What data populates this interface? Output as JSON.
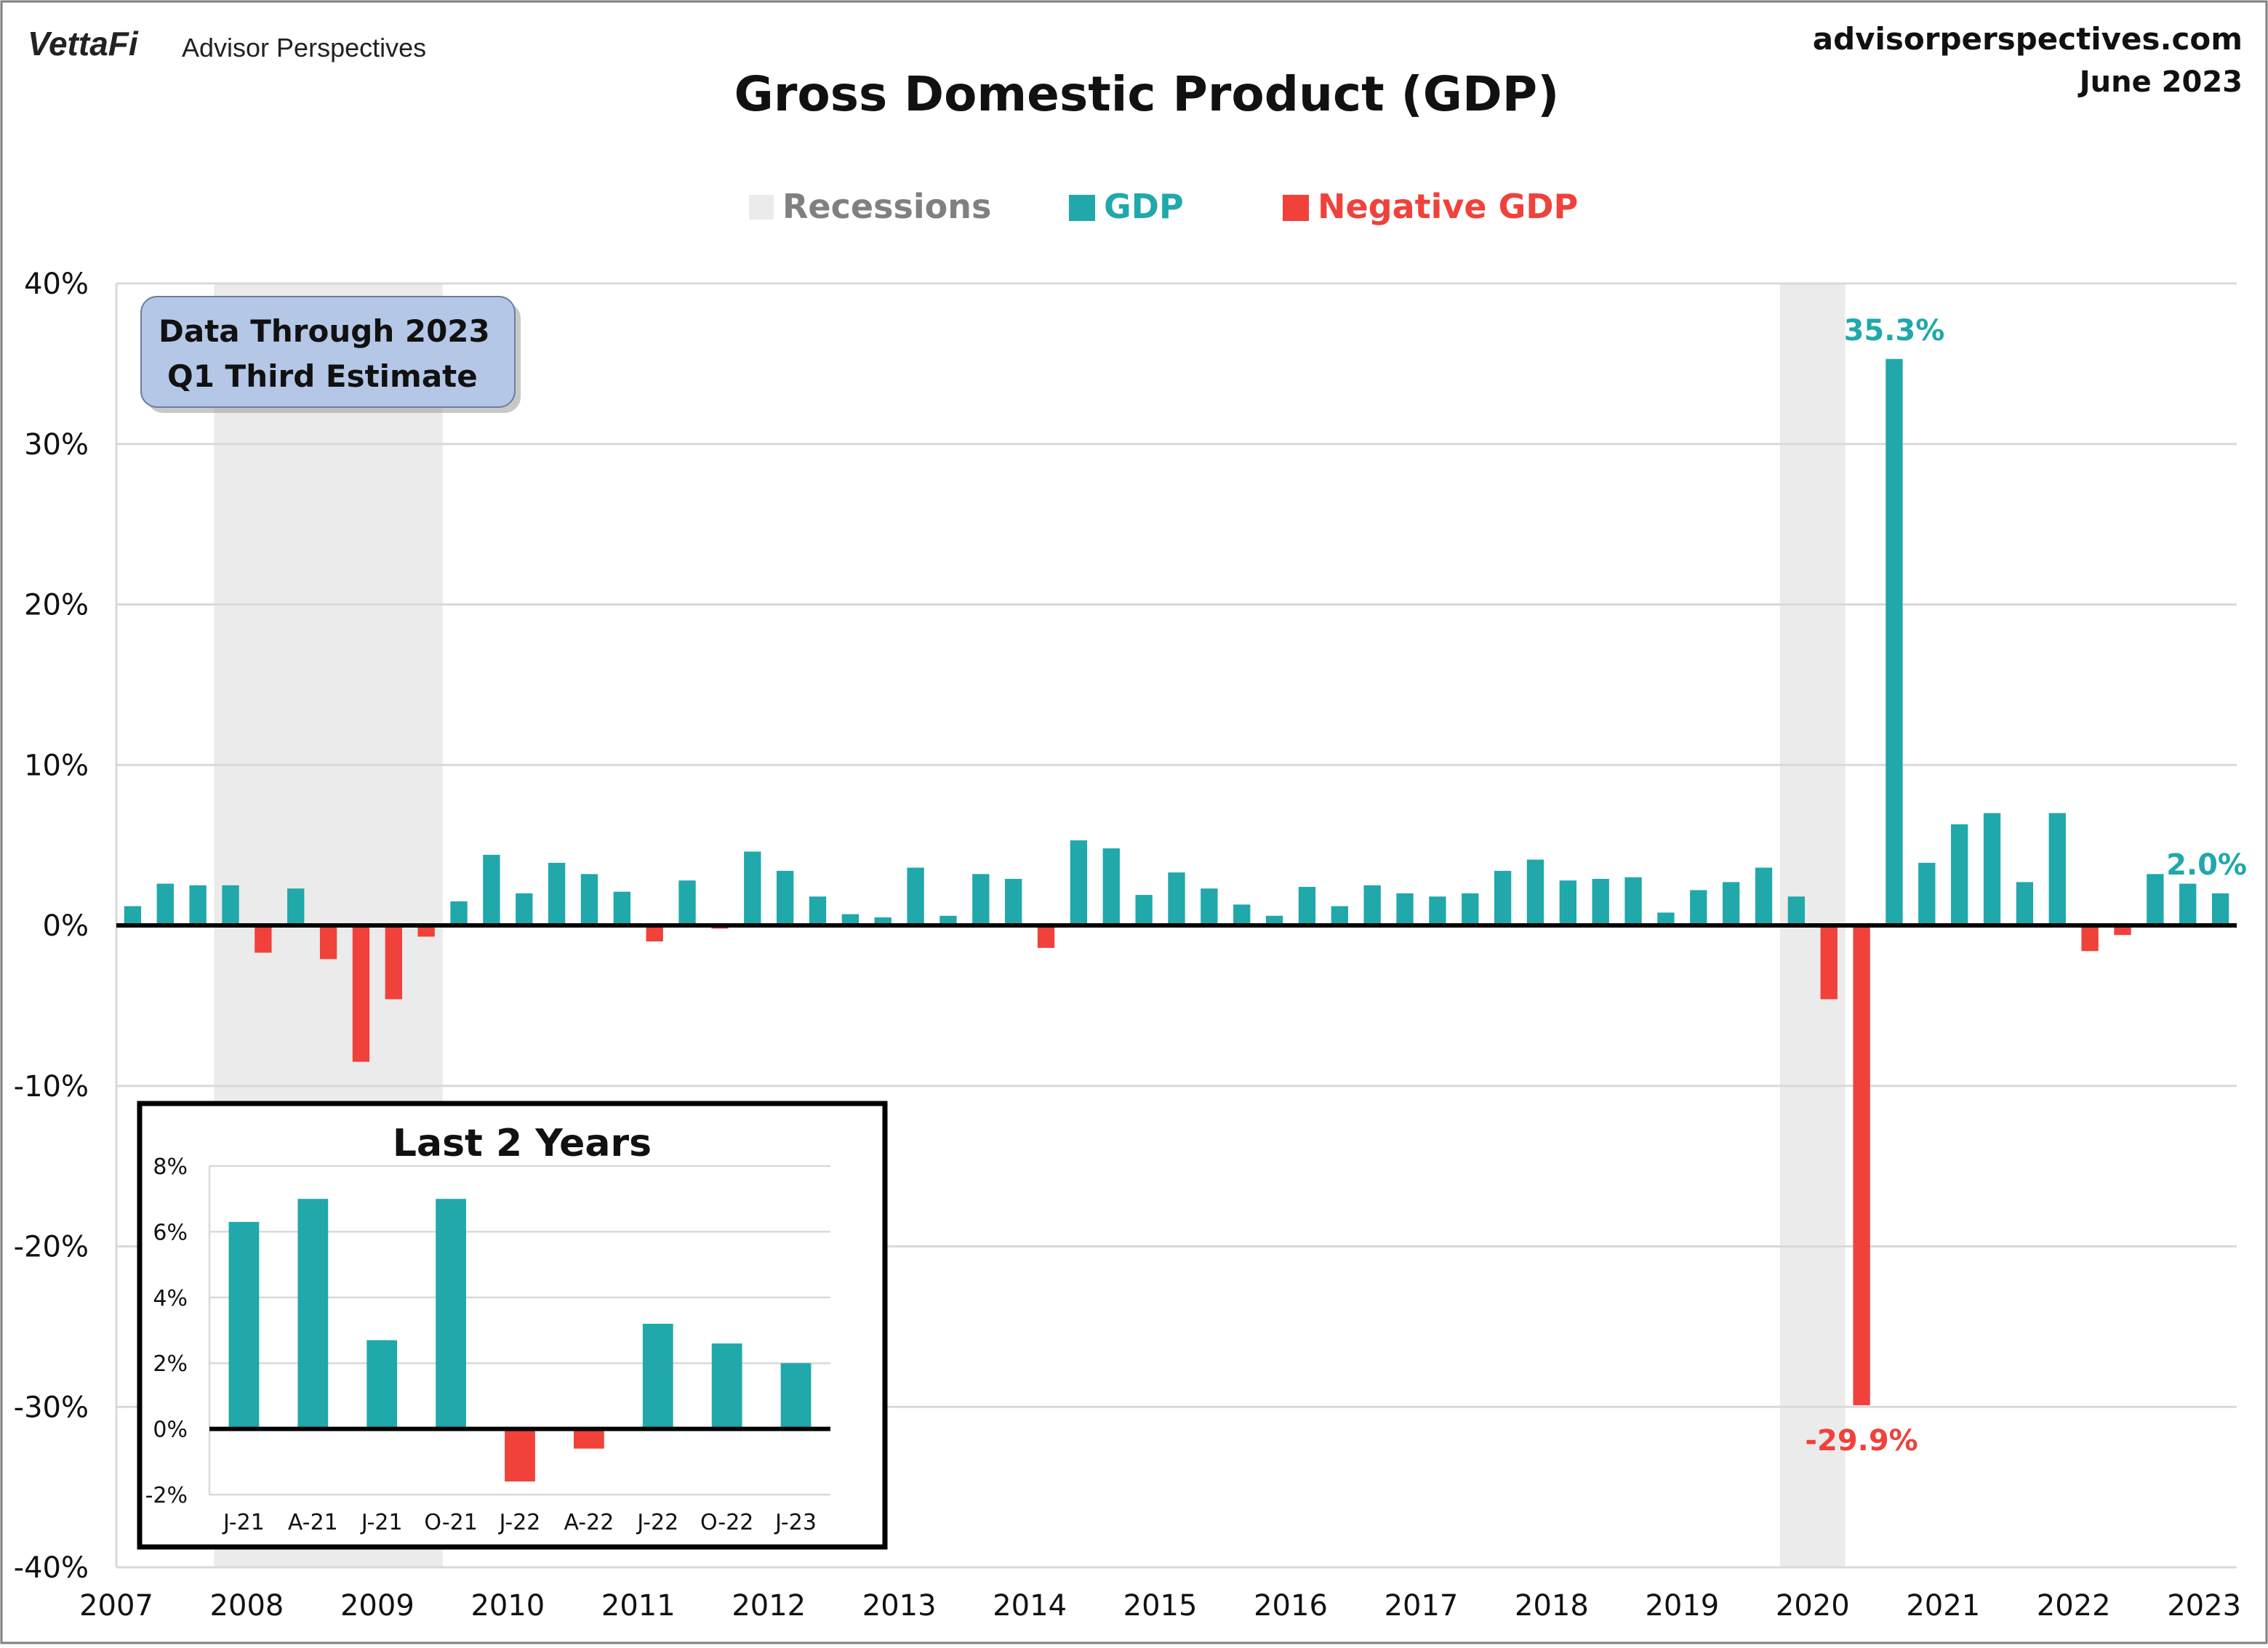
{
  "header": {
    "brand": "VettaFi",
    "brand_sub": "Advisor Perspectives",
    "site": "advisorperspectives.com",
    "date": "June 2023"
  },
  "colors": {
    "gdp": "#20A8AA",
    "negative": "#F0413B",
    "recession": "#EBEBEB",
    "grid": "#D9D9D9",
    "note_box": "#B4C7E7"
  },
  "note": {
    "line1": "Data Through 2023",
    "line2": "Q1 Third Estimate"
  },
  "chart_data": [
    {
      "type": "bar",
      "title": "Gross Domestic Product (GDP)",
      "legend": {
        "placement": "top-center",
        "items": [
          {
            "label": "Recessions",
            "color": "#EBEBEB",
            "text_color": "#808080"
          },
          {
            "label": "GDP",
            "color": "#20A8AA",
            "text_color": "#20A8AA"
          },
          {
            "label": "Negative GDP",
            "color": "#F0413B",
            "text_color": "#F0413B"
          }
        ]
      },
      "ylim": [
        -40,
        40
      ],
      "yticks": [
        40,
        30,
        20,
        10,
        0,
        -10,
        -20,
        -30,
        -40
      ],
      "ytick_labels": [
        "40%",
        "30%",
        "20%",
        "10%",
        "0%",
        "-10%",
        "-20%",
        "-30%",
        "-40%"
      ],
      "xtick_labels": [
        "2007",
        "2008",
        "2009",
        "2010",
        "2011",
        "2012",
        "2013",
        "2014",
        "2015",
        "2016",
        "2017",
        "2018",
        "2019",
        "2020",
        "2021",
        "2022",
        "2023"
      ],
      "grid": true,
      "recessions": [
        {
          "start_index": 3,
          "end_index": 9
        },
        {
          "start_index": 51,
          "end_index": 52
        }
      ],
      "series": [
        {
          "values": [
            1.2,
            2.6,
            2.5,
            2.5,
            -1.7,
            2.3,
            -2.1,
            -8.5,
            -4.6,
            -0.7,
            1.5,
            4.4,
            2.0,
            3.9,
            3.2,
            2.1,
            -1.0,
            2.8,
            -0.2,
            4.6,
            3.4,
            1.8,
            0.7,
            0.5,
            3.6,
            0.6,
            3.2,
            2.9,
            -1.4,
            5.3,
            4.8,
            1.9,
            3.3,
            2.3,
            1.3,
            0.6,
            2.4,
            1.2,
            2.5,
            2.0,
            1.8,
            2.0,
            3.4,
            4.1,
            2.8,
            2.9,
            3.0,
            0.8,
            2.2,
            2.7,
            3.6,
            1.8,
            -4.6,
            -29.9,
            35.3,
            3.9,
            6.3,
            7.0,
            2.7,
            7.0,
            -1.6,
            -0.6,
            3.2,
            2.6,
            2.0
          ]
        }
      ],
      "annotations": [
        {
          "index": 54,
          "text": "35.3%"
        },
        {
          "index": 53,
          "text": "-29.9%"
        },
        {
          "index": 64,
          "text": "2.0%"
        }
      ]
    },
    {
      "type": "bar",
      "title": "Last 2 Years",
      "categories": [
        "J-21",
        "A-21",
        "J-21",
        "O-21",
        "J-22",
        "A-22",
        "J-22",
        "O-22",
        "J-23"
      ],
      "ylim": [
        -2,
        8
      ],
      "yticks": [
        8,
        6,
        4,
        2,
        0,
        -2
      ],
      "ytick_labels": [
        "8%",
        "6%",
        "4%",
        "2%",
        "0%",
        "-2%"
      ],
      "grid": true,
      "series": [
        {
          "values": [
            6.3,
            7.0,
            2.7,
            7.0,
            -1.6,
            -0.6,
            3.2,
            2.6,
            2.0
          ]
        }
      ]
    }
  ]
}
